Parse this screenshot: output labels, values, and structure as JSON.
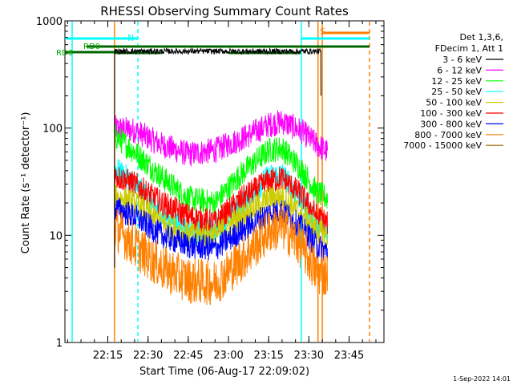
{
  "chart_data": {
    "type": "line",
    "title": "RHESSI Observing Summary Count Rates",
    "xlabel": "Start Time (06-Aug-17 22:09:02)",
    "ylabel": "Count Rate (s⁻¹ detector⁻¹)",
    "yscale": "log",
    "ylim": [
      1,
      1000
    ],
    "xlim_minutes": [
      -16,
      103
    ],
    "x_ticks": [
      {
        "label": "22:15",
        "minute": 0
      },
      {
        "label": "22:30",
        "minute": 15
      },
      {
        "label": "22:45",
        "minute": 30
      },
      {
        "label": "23:00",
        "minute": 45
      },
      {
        "label": "23:15",
        "minute": 60
      },
      {
        "label": "23:30",
        "minute": 75
      },
      {
        "label": "23:45",
        "minute": 90
      }
    ],
    "y_ticks": [
      {
        "label": "1",
        "value": 1
      },
      {
        "label": "10",
        "value": 10
      },
      {
        "label": "100",
        "value": 100
      },
      {
        "label": "1000",
        "value": 1000
      }
    ],
    "legend_header": [
      "Det 1,3,6,",
      "FDecim 1, Att 1"
    ],
    "series": [
      {
        "name": "3 - 6 keV",
        "color": "#000000",
        "approx_level": 520
      },
      {
        "name": "6 - 12 keV",
        "color": "#ff00ff",
        "points": [
          [
            2.5,
            100
          ],
          [
            10,
            95
          ],
          [
            20,
            70
          ],
          [
            30,
            57
          ],
          [
            40,
            62
          ],
          [
            50,
            80
          ],
          [
            60,
            107
          ],
          [
            65,
            115
          ],
          [
            72,
            95
          ],
          [
            78,
            70
          ],
          [
            82,
            60
          ]
        ]
      },
      {
        "name": "12 - 25 keV",
        "color": "#00ff00",
        "points": [
          [
            2.5,
            85
          ],
          [
            10,
            60
          ],
          [
            20,
            35
          ],
          [
            30,
            22
          ],
          [
            40,
            20
          ],
          [
            50,
            38
          ],
          [
            60,
            62
          ],
          [
            65,
            65
          ],
          [
            72,
            42
          ],
          [
            78,
            25
          ],
          [
            82,
            22
          ]
        ]
      },
      {
        "name": "25 - 50 keV",
        "color": "#00ffff",
        "points": [
          [
            2.5,
            42
          ],
          [
            10,
            30
          ],
          [
            20,
            16
          ],
          [
            30,
            11
          ],
          [
            40,
            11
          ],
          [
            50,
            20
          ],
          [
            60,
            35
          ],
          [
            65,
            37
          ],
          [
            72,
            22
          ],
          [
            78,
            12
          ],
          [
            82,
            11
          ]
        ]
      },
      {
        "name": "50 - 100 keV",
        "color": "#cccc00",
        "points": [
          [
            2.5,
            23
          ],
          [
            10,
            20
          ],
          [
            20,
            13
          ],
          [
            30,
            10
          ],
          [
            40,
            10
          ],
          [
            50,
            15
          ],
          [
            60,
            22
          ],
          [
            65,
            23
          ],
          [
            72,
            16
          ],
          [
            78,
            11
          ],
          [
            82,
            10
          ]
        ]
      },
      {
        "name": "100 - 300 keV",
        "color": "#ff0000",
        "points": [
          [
            2.5,
            36
          ],
          [
            10,
            30
          ],
          [
            20,
            20
          ],
          [
            30,
            15
          ],
          [
            40,
            13
          ],
          [
            50,
            22
          ],
          [
            60,
            32
          ],
          [
            65,
            34
          ],
          [
            72,
            24
          ],
          [
            78,
            15
          ],
          [
            82,
            13
          ]
        ]
      },
      {
        "name": "300 - 800 keV",
        "color": "#0000ff",
        "points": [
          [
            2.5,
            18
          ],
          [
            10,
            15
          ],
          [
            20,
            10
          ],
          [
            30,
            8
          ],
          [
            40,
            7.5
          ],
          [
            50,
            11
          ],
          [
            60,
            16
          ],
          [
            65,
            17
          ],
          [
            72,
            12
          ],
          [
            78,
            8
          ],
          [
            82,
            7
          ]
        ]
      },
      {
        "name": "800 - 7000 keV",
        "color": "#ff8000",
        "points": [
          [
            2.5,
            12
          ],
          [
            10,
            8
          ],
          [
            20,
            5
          ],
          [
            30,
            3.8
          ],
          [
            40,
            3.6
          ],
          [
            50,
            6
          ],
          [
            60,
            11
          ],
          [
            65,
            12
          ],
          [
            72,
            8
          ],
          [
            78,
            4.5
          ],
          [
            82,
            4.2
          ]
        ]
      },
      {
        "name": "7000 - 15000 keV",
        "color": "#996600",
        "points": []
      }
    ],
    "annotations": [
      {
        "text": "N",
        "color": "#00ffff"
      },
      {
        "text": "S",
        "color": "#ff8000"
      },
      {
        "text": "RD0",
        "color": "#00aa00"
      },
      {
        "text": "RD6",
        "color": "#00aa00"
      }
    ],
    "vertical_lines": [
      {
        "minute": -13.3,
        "color": "#00ffff",
        "style": "solid"
      },
      {
        "minute": 2.5,
        "color": "#ff8000",
        "style": "solid"
      },
      {
        "minute": 11.2,
        "color": "#00ffff",
        "style": "dashed"
      },
      {
        "minute": 72.2,
        "color": "#00ffff",
        "style": "solid"
      },
      {
        "minute": 78.4,
        "color": "#ff8000",
        "style": "solid"
      },
      {
        "minute": 80.0,
        "color": "#ff8000",
        "style": "solid"
      },
      {
        "minute": 97.6,
        "color": "#ff8000",
        "style": "dashed"
      }
    ],
    "footer": "1-Sep-2022 14:01"
  }
}
